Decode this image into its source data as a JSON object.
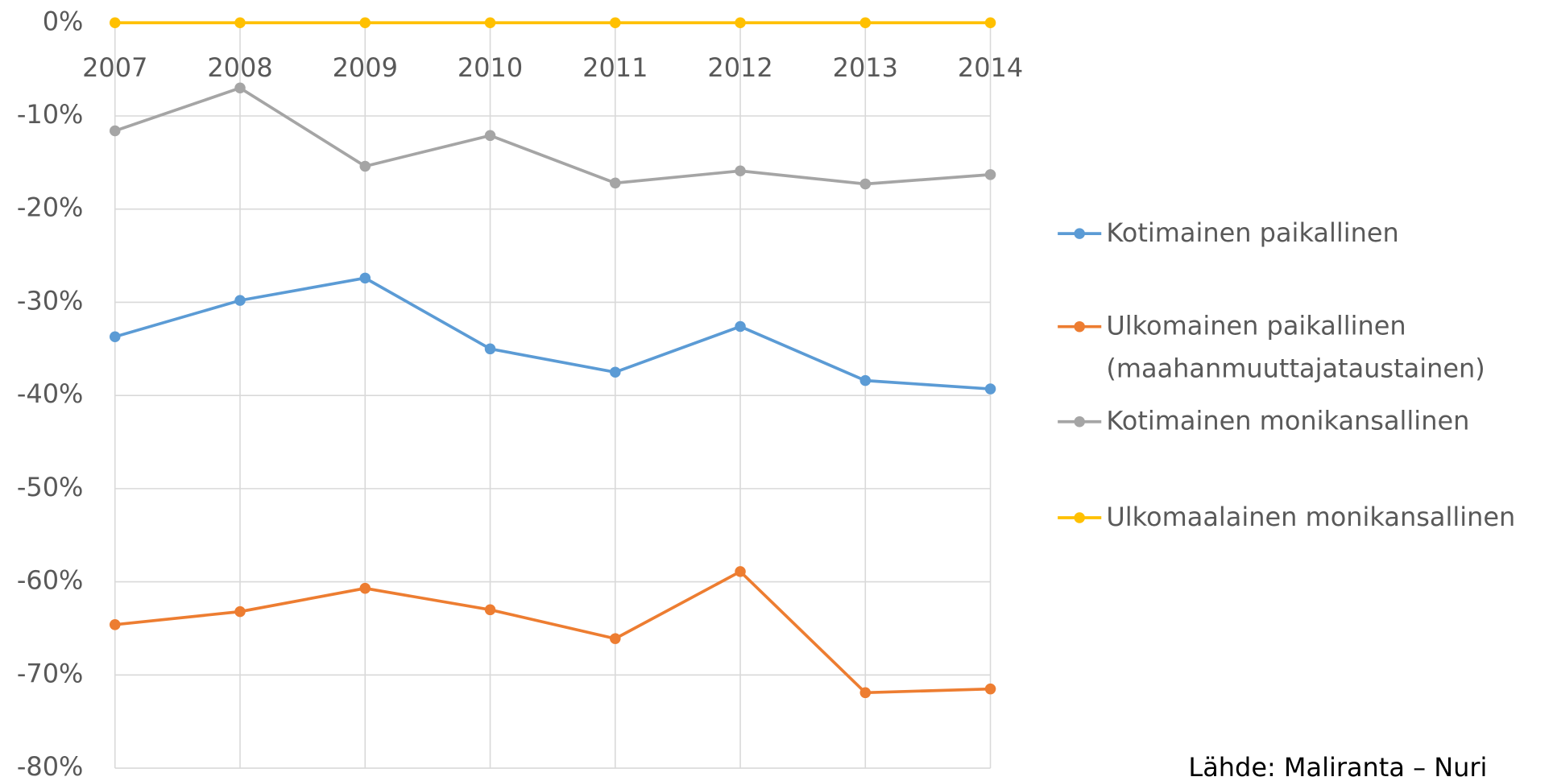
{
  "chart_data": {
    "type": "line",
    "categories": [
      "2007",
      "2008",
      "2009",
      "2010",
      "2011",
      "2012",
      "2013",
      "2014"
    ],
    "series": [
      {
        "name": "Kotimainen paikallinen",
        "color": "#5b9bd5",
        "values": [
          -33.7,
          -29.8,
          -27.4,
          -35.0,
          -37.5,
          -32.6,
          -38.4,
          -39.3
        ]
      },
      {
        "name": "Ulkomainen paikallinen (maahanmuuttajataustainen)",
        "color": "#ed7d31",
        "values": [
          -64.6,
          -63.2,
          -60.7,
          -63.0,
          -66.1,
          -58.9,
          -71.9,
          -71.5
        ]
      },
      {
        "name": "Kotimainen monikansallinen",
        "color": "#a5a5a5",
        "values": [
          -11.6,
          -7.0,
          -15.4,
          -12.1,
          -17.2,
          -15.9,
          -17.3,
          -16.3
        ]
      },
      {
        "name": "Ulkomaalainen monikansallinen",
        "color": "#ffc000",
        "values": [
          0,
          0,
          0,
          0,
          0,
          0,
          0,
          0
        ]
      }
    ],
    "ylim": [
      -80,
      0
    ],
    "yticks": [
      {
        "value": 0,
        "label": "0%"
      },
      {
        "value": -10,
        "label": "-10%"
      },
      {
        "value": -20,
        "label": "-20%"
      },
      {
        "value": -30,
        "label": "-30%"
      },
      {
        "value": -40,
        "label": "-40%"
      },
      {
        "value": -50,
        "label": "-50%"
      },
      {
        "value": -60,
        "label": "-60%"
      },
      {
        "value": -70,
        "label": "-70%"
      },
      {
        "value": -80,
        "label": "-80%"
      }
    ],
    "grid": true,
    "legend": "right",
    "annotation": "Lähde: Maliranta – Nuri"
  }
}
